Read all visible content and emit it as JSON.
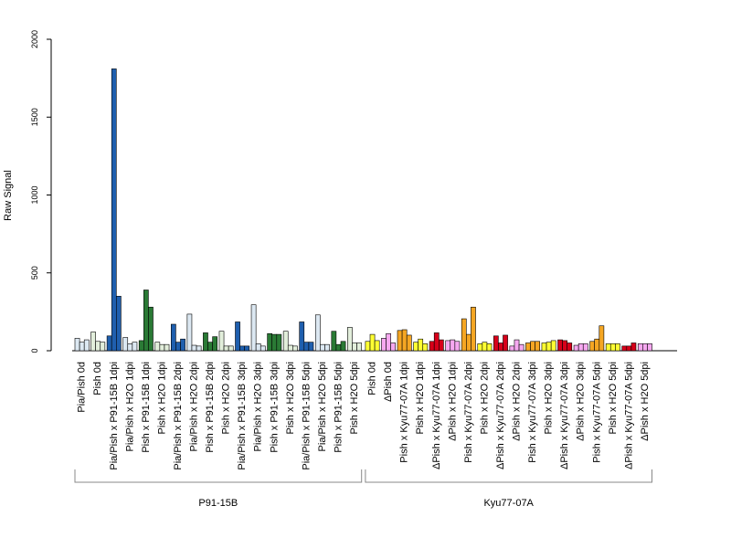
{
  "chart_data": {
    "type": "bar",
    "ylabel": "Raw Signal",
    "ylim": [
      0,
      2000
    ],
    "yticks": [
      0,
      500,
      1000,
      1500,
      2000
    ],
    "grid": false,
    "categories": [
      "Pia/Pish 0d",
      "Pish 0d",
      "Pia/Pish x P91-15B 1dpi",
      "Pia/Pish x H2O 1dpi",
      "Pish x P91-15B 1dpi",
      "Pish x H2O 1dpi",
      "Pia/Pish x P91-15B 2dpi",
      "Pia/Pish x H2O 2dpi",
      "Pish x P91-15B 2dpi",
      "Pish x H2O 2dpi",
      "Pia/Pish x P91-15B 3dpi",
      "Pia/Pish x H2O 3dpi",
      "Pish x P91-15B 3dpi",
      "Pish x H2O 3dpi",
      "Pia/Pish x P91-15B 5dpi",
      "Pia/Pish x H2O 5dpi",
      "Pish x P91-15B 5dpi",
      "Pish x H2O 5dpi",
      "Pish 0d",
      "ΔPish 0d",
      "Pish x Kyu77-07A 1dpi",
      "Pish x H2O 1dpi",
      "ΔPish x Kyu77-07A 1dpi",
      "ΔPish x H2O 1dpi",
      "Pish x Kyu77-07A 2dpi",
      "Pish x H2O 2dpi",
      "ΔPish x Kyu77-07A 2dpi",
      "ΔPish x H2O 2dpi",
      "Pish x Kyu77-07A 3dpi",
      "Pish x H2O 3dpi",
      "ΔPish x Kyu77-07A 3dpi",
      "ΔPish x H2O 3dpi",
      "Pish x Kyu77-07A 5dpi",
      "Pish x H2O 5dpi",
      "ΔPish x Kyu77-07A 5dpi",
      "ΔPish x H2O 5dpi"
    ],
    "group_colors": [
      "#dce8f2",
      "#e2eedb",
      "#1f5fae",
      "#dce8f2",
      "#2a7a35",
      "#e2eedb",
      "#1f5fae",
      "#dce8f2",
      "#2a7a35",
      "#e2eedb",
      "#1f5fae",
      "#dce8f2",
      "#2a7a35",
      "#e2eedb",
      "#1f5fae",
      "#dce8f2",
      "#2a7a35",
      "#e2eedb",
      "#ffff33",
      "#f6a8f0",
      "#f5a623",
      "#ffff33",
      "#d7001a",
      "#f6a8f0",
      "#f5a623",
      "#ffff33",
      "#d7001a",
      "#f6a8f0",
      "#f5a623",
      "#ffff33",
      "#d7001a",
      "#f6a8f0",
      "#f5a623",
      "#ffff33",
      "#d7001a",
      "#f6a8f0"
    ],
    "values": [
      [
        80,
        55,
        70
      ],
      [
        120,
        60,
        55
      ],
      [
        95,
        1810,
        350
      ],
      [
        85,
        45,
        55
      ],
      [
        65,
        390,
        280
      ],
      [
        55,
        40,
        40
      ],
      [
        170,
        55,
        75
      ],
      [
        235,
        35,
        30
      ],
      [
        115,
        55,
        90
      ],
      [
        125,
        30,
        30
      ],
      [
        185,
        30,
        30
      ],
      [
        295,
        45,
        30
      ],
      [
        110,
        105,
        105
      ],
      [
        125,
        35,
        30
      ],
      [
        185,
        55,
        55
      ],
      [
        230,
        40,
        40
      ],
      [
        125,
        40,
        60
      ],
      [
        150,
        50,
        50
      ],
      [
        60,
        105,
        65
      ],
      [
        80,
        110,
        50
      ],
      [
        130,
        135,
        100
      ],
      [
        55,
        75,
        45
      ],
      [
        60,
        115,
        70
      ],
      [
        65,
        70,
        60
      ],
      [
        205,
        105,
        280
      ],
      [
        45,
        55,
        45
      ],
      [
        95,
        50,
        100
      ],
      [
        30,
        70,
        40
      ],
      [
        50,
        60,
        60
      ],
      [
        50,
        55,
        65
      ],
      [
        70,
        65,
        50
      ],
      [
        35,
        45,
        45
      ],
      [
        60,
        75,
        160
      ],
      [
        45,
        45,
        45
      ],
      [
        30,
        30,
        50
      ],
      [
        45,
        45,
        45
      ]
    ],
    "groups": [
      {
        "label": "P91-15B",
        "first": 0,
        "last": 17
      },
      {
        "label": "Kyu77-07A",
        "first": 18,
        "last": 35
      }
    ]
  }
}
